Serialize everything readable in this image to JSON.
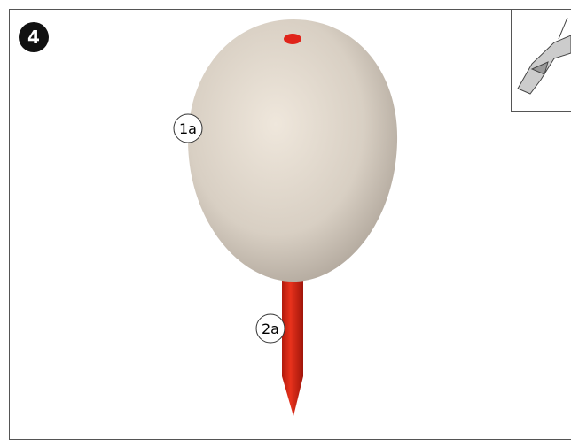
{
  "step": {
    "number": "4"
  },
  "labels": [
    "1a",
    "2a"
  ]
}
